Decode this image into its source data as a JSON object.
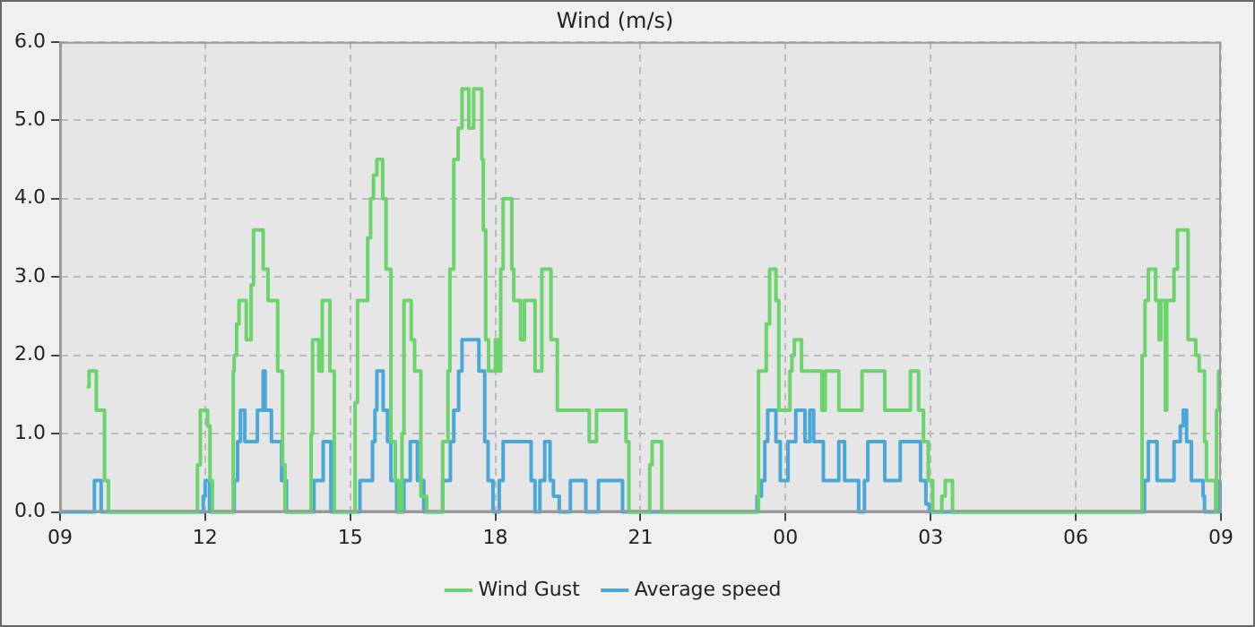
{
  "chart_data": {
    "type": "step",
    "title": "Wind (m/s)",
    "xlim": [
      9,
      33
    ],
    "xticks": [
      {
        "value": 9,
        "label": "09"
      },
      {
        "value": 12,
        "label": "12"
      },
      {
        "value": 15,
        "label": "15"
      },
      {
        "value": 18,
        "label": "18"
      },
      {
        "value": 21,
        "label": "21"
      },
      {
        "value": 24,
        "label": "00"
      },
      {
        "value": 27,
        "label": "03"
      },
      {
        "value": 30,
        "label": "06"
      },
      {
        "value": 33,
        "label": "09"
      }
    ],
    "ylim": [
      0,
      6
    ],
    "yticks": [
      {
        "value": 0,
        "label": "0.0"
      },
      {
        "value": 1,
        "label": "1.0"
      },
      {
        "value": 2,
        "label": "2.0"
      },
      {
        "value": 3,
        "label": "3.0"
      },
      {
        "value": 4,
        "label": "4.0"
      },
      {
        "value": 5,
        "label": "5.0"
      },
      {
        "value": 6,
        "label": "6.0"
      }
    ],
    "grid": true,
    "legend": "bottom",
    "series": [
      {
        "name": "Wind Gust",
        "color": "#6cd46c",
        "x": [
          9.55,
          9.6,
          9.75,
          9.92,
          10.0,
          11.84,
          11.9,
          12.05,
          12.1,
          12.15,
          12.58,
          12.6,
          12.65,
          12.7,
          12.85,
          12.95,
          13.0,
          13.2,
          13.3,
          13.5,
          13.6,
          13.65,
          14.19,
          14.22,
          14.35,
          14.42,
          14.58,
          14.67,
          15.1,
          15.15,
          15.36,
          15.42,
          15.48,
          15.55,
          15.67,
          15.74,
          15.84,
          15.93,
          16.0,
          16.07,
          16.11,
          16.26,
          16.33,
          16.46,
          16.58,
          16.91,
          17.02,
          17.06,
          17.14,
          17.23,
          17.31,
          17.45,
          17.55,
          17.72,
          17.75,
          17.8,
          17.86,
          18.0,
          18.06,
          18.11,
          18.16,
          18.34,
          18.38,
          18.52,
          18.6,
          18.82,
          18.96,
          19.15,
          19.28,
          19.94,
          20.09,
          20.7,
          20.76,
          21.19,
          21.24,
          21.44,
          23.44,
          23.6,
          23.67,
          23.8,
          23.86,
          24.09,
          24.13,
          24.18,
          24.33,
          24.75,
          24.82,
          25.1,
          25.58,
          26.05,
          26.58,
          26.75,
          26.85,
          26.95,
          27.04,
          27.23,
          27.3,
          27.45,
          31.37,
          31.43,
          31.5,
          31.65,
          31.72,
          31.76,
          31.85,
          31.88,
          32.03,
          32.1,
          32.32,
          32.48,
          32.55,
          32.66,
          32.7,
          32.89,
          32.91,
          32.95,
          33
        ],
        "values": [
          1.6,
          1.8,
          1.3,
          0.4,
          0,
          0.6,
          1.3,
          1.1,
          0.4,
          0,
          1.8,
          2.0,
          2.4,
          2.7,
          2.2,
          2.9,
          3.6,
          3.1,
          2.7,
          1.8,
          0.6,
          0,
          1.0,
          2.2,
          1.8,
          2.7,
          1.8,
          0,
          1.4,
          2.7,
          3.5,
          4.0,
          4.3,
          4.5,
          4.0,
          3.1,
          0.9,
          0.4,
          0,
          1.0,
          2.7,
          2.2,
          1.8,
          0.2,
          0,
          0.9,
          1.8,
          3.1,
          4.5,
          4.9,
          5.4,
          4.9,
          5.4,
          4.5,
          3.6,
          2.2,
          1.8,
          2.2,
          1.8,
          3.1,
          4.0,
          3.1,
          2.7,
          2.2,
          2.7,
          1.8,
          3.1,
          2.2,
          1.3,
          0.9,
          1.3,
          0.9,
          0,
          0.6,
          0.9,
          0,
          1.8,
          2.4,
          3.1,
          2.7,
          1.3,
          1.8,
          2.0,
          2.2,
          1.8,
          1.3,
          1.8,
          1.3,
          1.8,
          1.3,
          1.8,
          1.3,
          0.9,
          0.4,
          0,
          0.2,
          0.4,
          0,
          2.0,
          2.7,
          3.1,
          2.7,
          2.2,
          2.7,
          1.3,
          2.7,
          3.1,
          3.6,
          2.2,
          2.0,
          1.8,
          0.9,
          0.4,
          0,
          1.3,
          1.8,
          1.8
        ]
      },
      {
        "name": "Average speed",
        "color": "#4aa8d8",
        "x": [
          9,
          9.71,
          9.85,
          11.96,
          12.0,
          12.09,
          12.6,
          12.67,
          12.73,
          12.82,
          13.08,
          13.2,
          13.24,
          13.37,
          13.58,
          13.68,
          14.25,
          14.44,
          14.6,
          15.2,
          15.46,
          15.51,
          15.55,
          15.68,
          15.77,
          15.84,
          15.96,
          16.11,
          16.24,
          16.39,
          16.52,
          16.91,
          17.07,
          17.14,
          17.24,
          17.31,
          17.66,
          17.78,
          17.85,
          17.95,
          18.08,
          18.16,
          18.74,
          18.82,
          18.92,
          19.02,
          19.13,
          19.2,
          19.32,
          19.55,
          19.87,
          20.13,
          20.63,
          23.41,
          23.5,
          23.57,
          23.63,
          23.8,
          23.89,
          24.05,
          24.21,
          24.4,
          24.5,
          24.58,
          24.78,
          25.1,
          25.22,
          25.51,
          25.63,
          25.7,
          26.05,
          26.37,
          26.79,
          26.9,
          26.97,
          31.42,
          31.5,
          31.68,
          32.03,
          32.16,
          32.22,
          32.29,
          32.39,
          32.63,
          32.66,
          32.98,
          33
        ],
        "values": [
          0,
          0.4,
          0,
          0.2,
          0.4,
          0,
          0.4,
          0.9,
          1.3,
          0.9,
          1.3,
          1.8,
          1.3,
          0.9,
          0.4,
          0,
          0.4,
          0.9,
          0,
          0.4,
          0.9,
          1.3,
          1.8,
          1.3,
          0.9,
          0.4,
          0,
          0.4,
          0.9,
          0.4,
          0,
          0.4,
          0.9,
          1.3,
          1.8,
          2.2,
          1.8,
          0.9,
          0.4,
          0,
          0.4,
          0.9,
          0.4,
          0,
          0.4,
          0.9,
          0.4,
          0.2,
          0,
          0.4,
          0,
          0.4,
          0,
          0.2,
          0.4,
          0.9,
          1.3,
          0.9,
          0.4,
          0.9,
          1.3,
          0.9,
          1.3,
          0.9,
          0.4,
          0.9,
          0.4,
          0,
          0.4,
          0.9,
          0.4,
          0.9,
          0.4,
          0.1,
          0,
          0.4,
          0.9,
          0.4,
          0.9,
          1.1,
          1.3,
          0.9,
          0.4,
          0.2,
          0,
          0.4,
          0.4
        ]
      }
    ]
  }
}
